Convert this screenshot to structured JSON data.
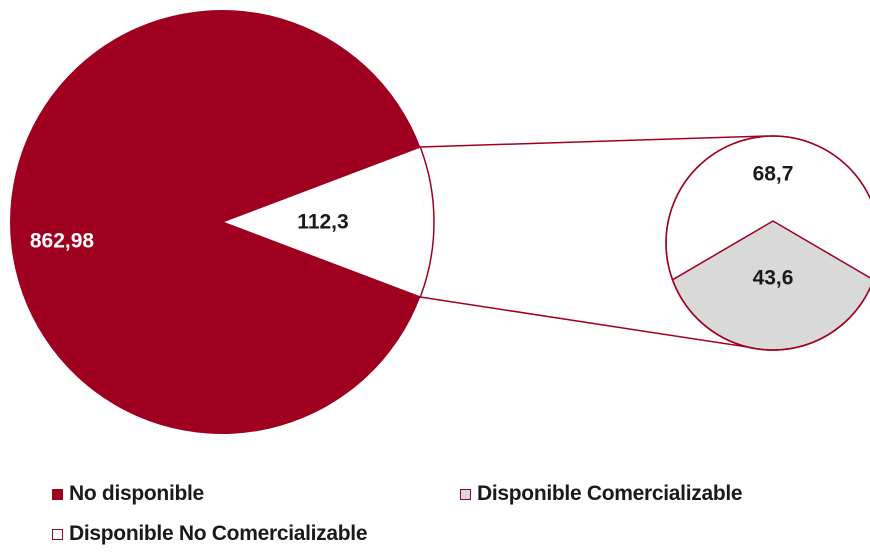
{
  "chart_data": {
    "type": "pie",
    "main_pie": {
      "slices": [
        {
          "label": "No disponible",
          "value": 862.98,
          "value_label": "862,98",
          "color": "#A00020"
        },
        {
          "label": "Disponible",
          "value": 112.3,
          "value_label": "112,3",
          "color": "#FFFFFF"
        }
      ]
    },
    "detail_pie": {
      "of_slice": "Disponible",
      "slices": [
        {
          "label": "Disponible No Comercializable",
          "value": 68.7,
          "value_label": "68,7",
          "color": "#FFFFFF"
        },
        {
          "label": "Disponible Comercializable",
          "value": 43.6,
          "value_label": "43,6",
          "color": "#D9D9D9"
        }
      ]
    },
    "legend": [
      {
        "label": "No disponible",
        "color": "#A00020"
      },
      {
        "label": "Disponible Comercializable",
        "color": "#D9D9D9"
      },
      {
        "label": "Disponible No Comercializable",
        "color": "#FFFFFF"
      }
    ],
    "legend_position": "bottom",
    "outline_color": "#A00020"
  }
}
